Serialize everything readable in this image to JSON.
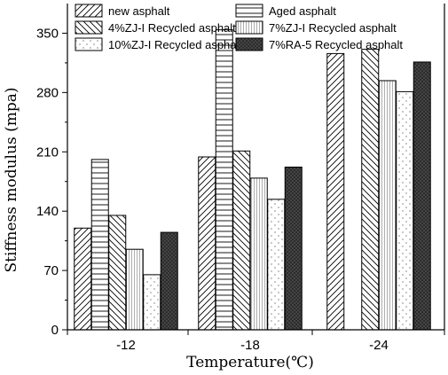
{
  "chart_data": {
    "type": "bar",
    "xlabel": "Temperature(℃)",
    "ylabel": "Stiffness modulus (mpa)",
    "ylim": [
      0,
      385
    ],
    "yticks": [
      0,
      70,
      140,
      210,
      280,
      350
    ],
    "categories": [
      "-12",
      "-18",
      "-24"
    ],
    "series": [
      {
        "name": "new asphalt",
        "values": [
          120,
          204,
          326
        ],
        "pattern": "diag-back"
      },
      {
        "name": "Aged asphalt",
        "values": [
          201,
          354,
          null
        ],
        "pattern": "horizontal"
      },
      {
        "name": "4%ZJ-I Recycled asphalt",
        "values": [
          135,
          211,
          331
        ],
        "pattern": "diag-fwd"
      },
      {
        "name": "7%ZJ-I Recycled asphalt",
        "values": [
          95,
          179,
          294
        ],
        "pattern": "vertical"
      },
      {
        "name": "10%ZJ-I Recycled asphalt",
        "values": [
          65,
          154,
          281
        ],
        "pattern": "dots"
      },
      {
        "name": "7%RA-5 Recycled asphalt",
        "values": [
          115,
          192,
          316
        ],
        "pattern": "crosshatch"
      }
    ],
    "legend": {
      "placement": "top",
      "columns": 2
    },
    "grid": false
  }
}
